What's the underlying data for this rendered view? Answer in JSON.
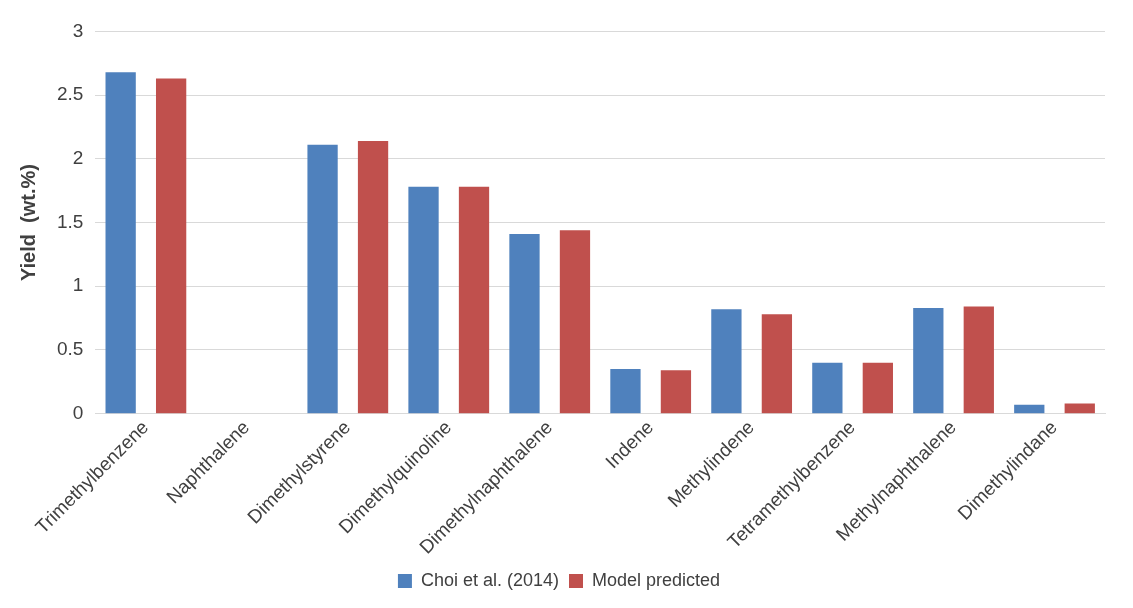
{
  "chart_data": {
    "type": "bar",
    "ylabel": "Yield  (wt.%)",
    "categories": [
      "Trimethylbenzene",
      "Naphthalene",
      "Dimethylstyrene",
      "Dimethylquinoline",
      "Dimethylnaphthalene",
      "Indene",
      "Methylindene",
      "Tetramethylbenzene",
      "Methylnaphthalene",
      "Dimethylindane"
    ],
    "series": [
      {
        "name": "Choi et al. (2014)",
        "color": "#4f81bd",
        "values": [
          2.68,
          0,
          2.11,
          1.78,
          1.41,
          0.35,
          0.82,
          0.4,
          0.83,
          0.07
        ]
      },
      {
        "name": "Model predicted",
        "color": "#c0504d",
        "values": [
          2.63,
          0,
          2.14,
          1.78,
          1.44,
          0.34,
          0.78,
          0.4,
          0.84,
          0.08
        ]
      }
    ],
    "ylim": [
      0,
      3
    ],
    "yticks": [
      0,
      0.5,
      1,
      1.5,
      2,
      2.5,
      3
    ],
    "grid": "y",
    "legend": "bottom"
  }
}
